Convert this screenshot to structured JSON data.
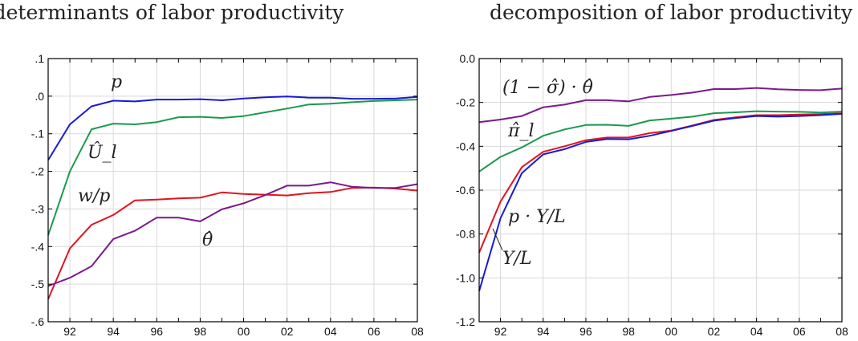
{
  "colors": {
    "blue": "#1a1ad6",
    "green": "#1a9a4a",
    "red": "#e0141e",
    "purple": "#7a1a8a",
    "grid": "#d9d9d9"
  },
  "chart_data": [
    {
      "type": "line",
      "title": "determinants of labor productivity",
      "x": [
        91,
        92,
        93,
        94,
        95,
        96,
        97,
        98,
        99,
        100,
        101,
        102,
        103,
        104,
        105,
        106,
        107,
        108
      ],
      "xticks": [
        "92",
        "94",
        "96",
        "98",
        "00",
        "02",
        "04",
        "06",
        "08"
      ],
      "yticks": [
        ".1",
        ".0",
        "-.1",
        "-.2",
        "-.3",
        "-.4",
        "-.5",
        "-.6"
      ],
      "ylim": [
        -0.6,
        0.1
      ],
      "grid": true,
      "series": [
        {
          "name": "p",
          "color": "blue",
          "values": [
            -0.17,
            -0.075,
            -0.027,
            -0.012,
            -0.014,
            -0.009,
            -0.009,
            -0.008,
            -0.011,
            -0.006,
            -0.003,
            -0.001,
            -0.004,
            -0.004,
            -0.007,
            -0.007,
            -0.006,
            -0.002
          ]
        },
        {
          "name": "Û_l",
          "color": "green",
          "values": [
            -0.37,
            -0.2,
            -0.088,
            -0.073,
            -0.075,
            -0.069,
            -0.056,
            -0.055,
            -0.058,
            -0.053,
            -0.043,
            -0.033,
            -0.022,
            -0.02,
            -0.016,
            -0.013,
            -0.011,
            -0.009
          ]
        },
        {
          "name": "w/p",
          "color": "red",
          "values": [
            -0.54,
            -0.405,
            -0.342,
            -0.316,
            -0.277,
            -0.275,
            -0.272,
            -0.27,
            -0.256,
            -0.26,
            -0.262,
            -0.264,
            -0.258,
            -0.255,
            -0.244,
            -0.243,
            -0.246,
            -0.251
          ]
        },
        {
          "name": "θ̂",
          "color": "purple",
          "values": [
            -0.505,
            -0.483,
            -0.452,
            -0.38,
            -0.358,
            -0.323,
            -0.323,
            -0.333,
            -0.301,
            -0.285,
            -0.263,
            -0.238,
            -0.238,
            -0.229,
            -0.241,
            -0.244,
            -0.244,
            -0.234
          ]
        }
      ],
      "annotations": [
        "p",
        "Û_l",
        "w/p",
        "θ̂"
      ]
    },
    {
      "type": "line",
      "title": "decomposition of labor productivity",
      "x": [
        91,
        92,
        93,
        94,
        95,
        96,
        97,
        98,
        99,
        100,
        101,
        102,
        103,
        104,
        105,
        106,
        107,
        108
      ],
      "xticks": [
        "92",
        "94",
        "96",
        "98",
        "00",
        "02",
        "04",
        "06",
        "08"
      ],
      "yticks": [
        "0.0",
        "-0.2",
        "-0.4",
        "-0.6",
        "-0.8",
        "-1.0",
        "-1.2"
      ],
      "ylim": [
        -1.2,
        0.0
      ],
      "grid": true,
      "series": [
        {
          "name": "(1 − σ̂) · θ̂",
          "color": "purple",
          "values": [
            -0.29,
            -0.278,
            -0.262,
            -0.222,
            -0.21,
            -0.19,
            -0.19,
            -0.195,
            -0.175,
            -0.166,
            -0.155,
            -0.139,
            -0.139,
            -0.134,
            -0.14,
            -0.143,
            -0.144,
            -0.137
          ]
        },
        {
          "name": "π̂_l",
          "color": "green",
          "values": [
            -0.515,
            -0.448,
            -0.405,
            -0.352,
            -0.323,
            -0.303,
            -0.302,
            -0.307,
            -0.282,
            -0.274,
            -0.265,
            -0.249,
            -0.245,
            -0.24,
            -0.242,
            -0.243,
            -0.246,
            -0.242
          ]
        },
        {
          "name": "p · Y/L",
          "color": "red",
          "values": [
            -0.885,
            -0.652,
            -0.495,
            -0.425,
            -0.4,
            -0.372,
            -0.36,
            -0.36,
            -0.34,
            -0.328,
            -0.305,
            -0.28,
            -0.268,
            -0.258,
            -0.258,
            -0.255,
            -0.253,
            -0.25
          ]
        },
        {
          "name": "Y/L",
          "color": "blue",
          "values": [
            -1.06,
            -0.728,
            -0.522,
            -0.437,
            -0.413,
            -0.38,
            -0.367,
            -0.368,
            -0.352,
            -0.33,
            -0.307,
            -0.283,
            -0.271,
            -0.262,
            -0.265,
            -0.262,
            -0.258,
            -0.252
          ]
        }
      ],
      "annotations": [
        "(1 − σ̂) · θ̂",
        "π̂_l",
        "p · Y/L",
        "Y/L"
      ]
    }
  ]
}
